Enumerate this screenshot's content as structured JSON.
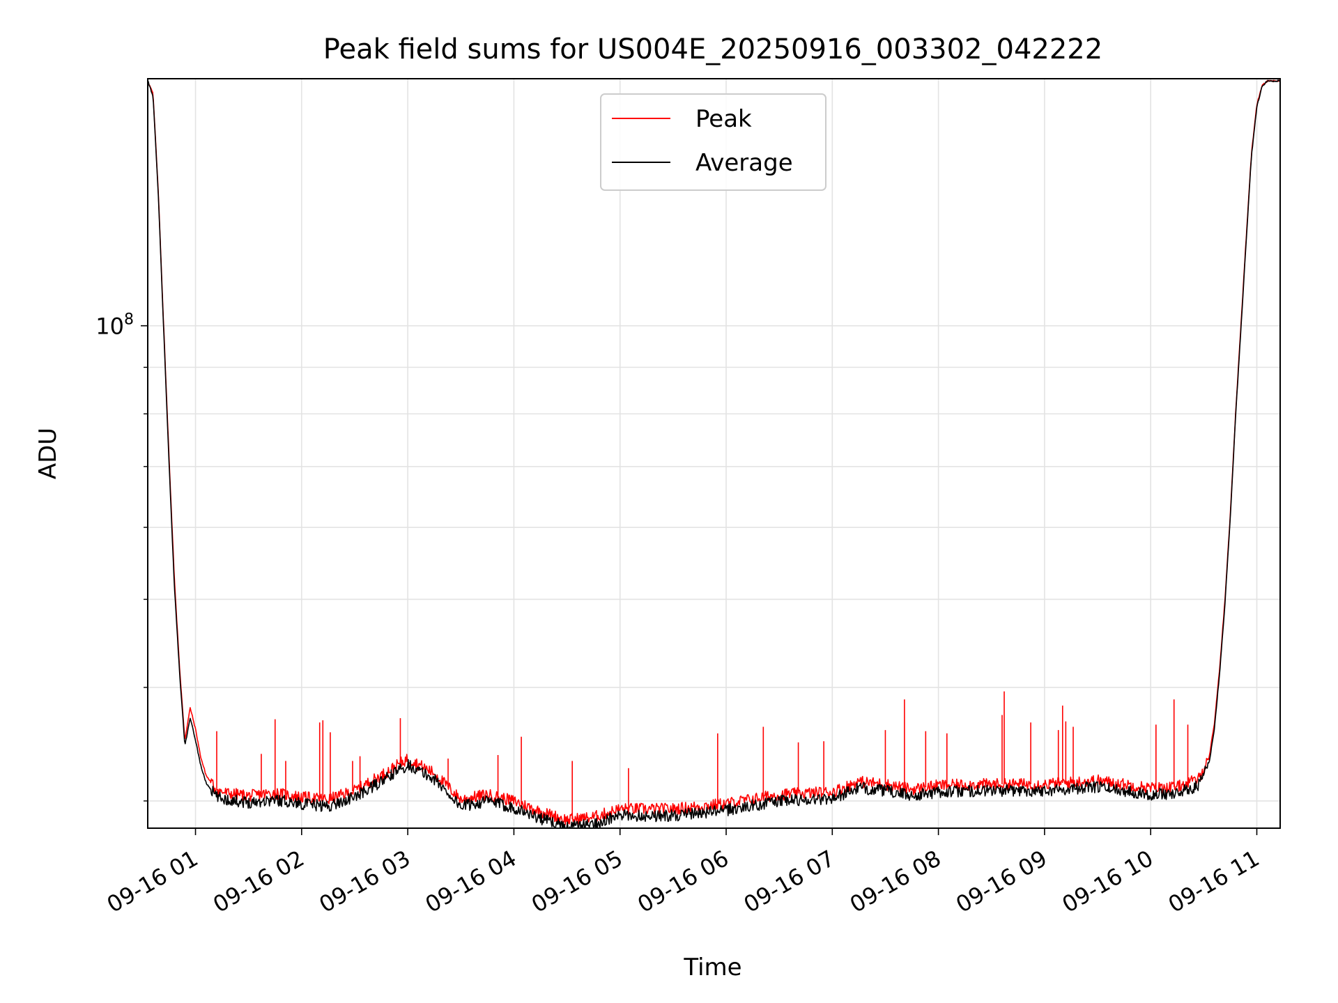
{
  "chart_data": {
    "type": "line",
    "title": "Peak field sums for US004E_20250916_003302_042222",
    "xlabel": "Time",
    "ylabel": "ADU",
    "yscale": "log",
    "ylim": [
      28000000,
      187000000
    ],
    "xlim_hours": [
      0.55,
      11.22
    ],
    "grid": true,
    "legend_position": "upper center",
    "x_tick_labels": [
      "09-16 01",
      "09-16 02",
      "09-16 03",
      "09-16 04",
      "09-16 05",
      "09-16 06",
      "09-16 07",
      "09-16 08",
      "09-16 09",
      "09-16 10",
      "09-16 11"
    ],
    "x_tick_hours": [
      1,
      2,
      3,
      4,
      5,
      6,
      7,
      8,
      9,
      10,
      11
    ],
    "y_major_tick": {
      "value": 100000000,
      "base": "10",
      "exponent": "8"
    },
    "y_minor_ticks": [
      30000000,
      40000000,
      50000000,
      60000000,
      70000000,
      80000000,
      90000000
    ],
    "series": [
      {
        "name": "Peak",
        "color": "#ff0000",
        "x_hours": [
          0.55,
          0.6,
          0.65,
          0.7,
          0.75,
          0.8,
          0.85,
          0.9,
          0.95,
          1.0,
          1.05,
          1.1,
          1.2,
          1.3,
          1.5,
          1.75,
          2.0,
          2.25,
          2.5,
          2.75,
          3.0,
          3.25,
          3.5,
          3.75,
          4.0,
          4.25,
          4.5,
          4.75,
          5.0,
          5.5,
          6.0,
          6.5,
          7.0,
          7.25,
          7.5,
          7.75,
          8.0,
          8.5,
          9.0,
          9.5,
          10.0,
          10.25,
          10.45,
          10.55,
          10.6,
          10.65,
          10.7,
          10.75,
          10.8,
          10.85,
          10.9,
          10.95,
          11.0,
          11.05,
          11.1,
          11.22
        ],
        "values": [
          186000000,
          180000000,
          140000000,
          100000000,
          72000000,
          53000000,
          42000000,
          35000000,
          38000000,
          36000000,
          33500000,
          32000000,
          30800000,
          30600000,
          30400000,
          30600000,
          30300000,
          30100000,
          30800000,
          32000000,
          33400000,
          32200000,
          30100000,
          30500000,
          30000000,
          29200000,
          28600000,
          28800000,
          29400000,
          29400000,
          29800000,
          30500000,
          30700000,
          31500000,
          31300000,
          30900000,
          31200000,
          31300000,
          31300000,
          31600000,
          31000000,
          31100000,
          31700000,
          33500000,
          36500000,
          42000000,
          50000000,
          62000000,
          80000000,
          100000000,
          125000000,
          155000000,
          175000000,
          184000000,
          186000000,
          186000000
        ]
      },
      {
        "name": "Average",
        "color": "#000000",
        "x_hours": [
          0.55,
          0.6,
          0.65,
          0.7,
          0.75,
          0.8,
          0.85,
          0.9,
          0.95,
          1.0,
          1.05,
          1.1,
          1.2,
          1.3,
          1.5,
          1.75,
          2.0,
          2.25,
          2.5,
          2.75,
          3.0,
          3.25,
          3.5,
          3.75,
          4.0,
          4.25,
          4.5,
          4.75,
          5.0,
          5.5,
          6.0,
          6.5,
          7.0,
          7.25,
          7.5,
          7.75,
          8.0,
          8.5,
          9.0,
          9.5,
          10.0,
          10.25,
          10.45,
          10.55,
          10.6,
          10.65,
          10.7,
          10.75,
          10.8,
          10.85,
          10.9,
          10.95,
          11.0,
          11.05,
          11.1,
          11.22
        ],
        "values": [
          186000000,
          179000000,
          139000000,
          99000000,
          71000000,
          52000000,
          41500000,
          34500000,
          37000000,
          35000000,
          32800000,
          31400000,
          30300000,
          30100000,
          29900000,
          30100000,
          29800000,
          29600000,
          30300000,
          31500000,
          32900000,
          31700000,
          29600000,
          30000000,
          29500000,
          28700000,
          28100000,
          28300000,
          28900000,
          28900000,
          29300000,
          30000000,
          30200000,
          31000000,
          30800000,
          30400000,
          30700000,
          30800000,
          30800000,
          31100000,
          30500000,
          30600000,
          31200000,
          33000000,
          36000000,
          41500000,
          49500000,
          61500000,
          79500000,
          99000000,
          124000000,
          154000000,
          174000000,
          183500000,
          186000000,
          186000000
        ]
      }
    ],
    "spikes": [
      {
        "x_hours": 1.2,
        "value": 35800000
      },
      {
        "x_hours": 1.62,
        "value": 33800000
      },
      {
        "x_hours": 1.75,
        "value": 36900000
      },
      {
        "x_hours": 1.85,
        "value": 33200000
      },
      {
        "x_hours": 2.17,
        "value": 36600000
      },
      {
        "x_hours": 2.2,
        "value": 36800000
      },
      {
        "x_hours": 2.27,
        "value": 35700000
      },
      {
        "x_hours": 2.48,
        "value": 33200000
      },
      {
        "x_hours": 2.55,
        "value": 33600000
      },
      {
        "x_hours": 2.93,
        "value": 37000000
      },
      {
        "x_hours": 3.38,
        "value": 33400000
      },
      {
        "x_hours": 3.85,
        "value": 33700000
      },
      {
        "x_hours": 4.07,
        "value": 35300000
      },
      {
        "x_hours": 4.55,
        "value": 33200000
      },
      {
        "x_hours": 5.08,
        "value": 32600000
      },
      {
        "x_hours": 5.92,
        "value": 35600000
      },
      {
        "x_hours": 6.35,
        "value": 36200000
      },
      {
        "x_hours": 6.68,
        "value": 34800000
      },
      {
        "x_hours": 6.92,
        "value": 34900000
      },
      {
        "x_hours": 7.5,
        "value": 35900000
      },
      {
        "x_hours": 7.68,
        "value": 38800000
      },
      {
        "x_hours": 7.88,
        "value": 35800000
      },
      {
        "x_hours": 8.08,
        "value": 35600000
      },
      {
        "x_hours": 8.6,
        "value": 37300000
      },
      {
        "x_hours": 8.62,
        "value": 39600000
      },
      {
        "x_hours": 8.87,
        "value": 36600000
      },
      {
        "x_hours": 9.13,
        "value": 35900000
      },
      {
        "x_hours": 9.17,
        "value": 38200000
      },
      {
        "x_hours": 9.2,
        "value": 36700000
      },
      {
        "x_hours": 9.27,
        "value": 36200000
      },
      {
        "x_hours": 10.05,
        "value": 36400000
      },
      {
        "x_hours": 10.22,
        "value": 38800000
      },
      {
        "x_hours": 10.35,
        "value": 36400000
      }
    ],
    "legend": [
      "Peak",
      "Average"
    ]
  }
}
